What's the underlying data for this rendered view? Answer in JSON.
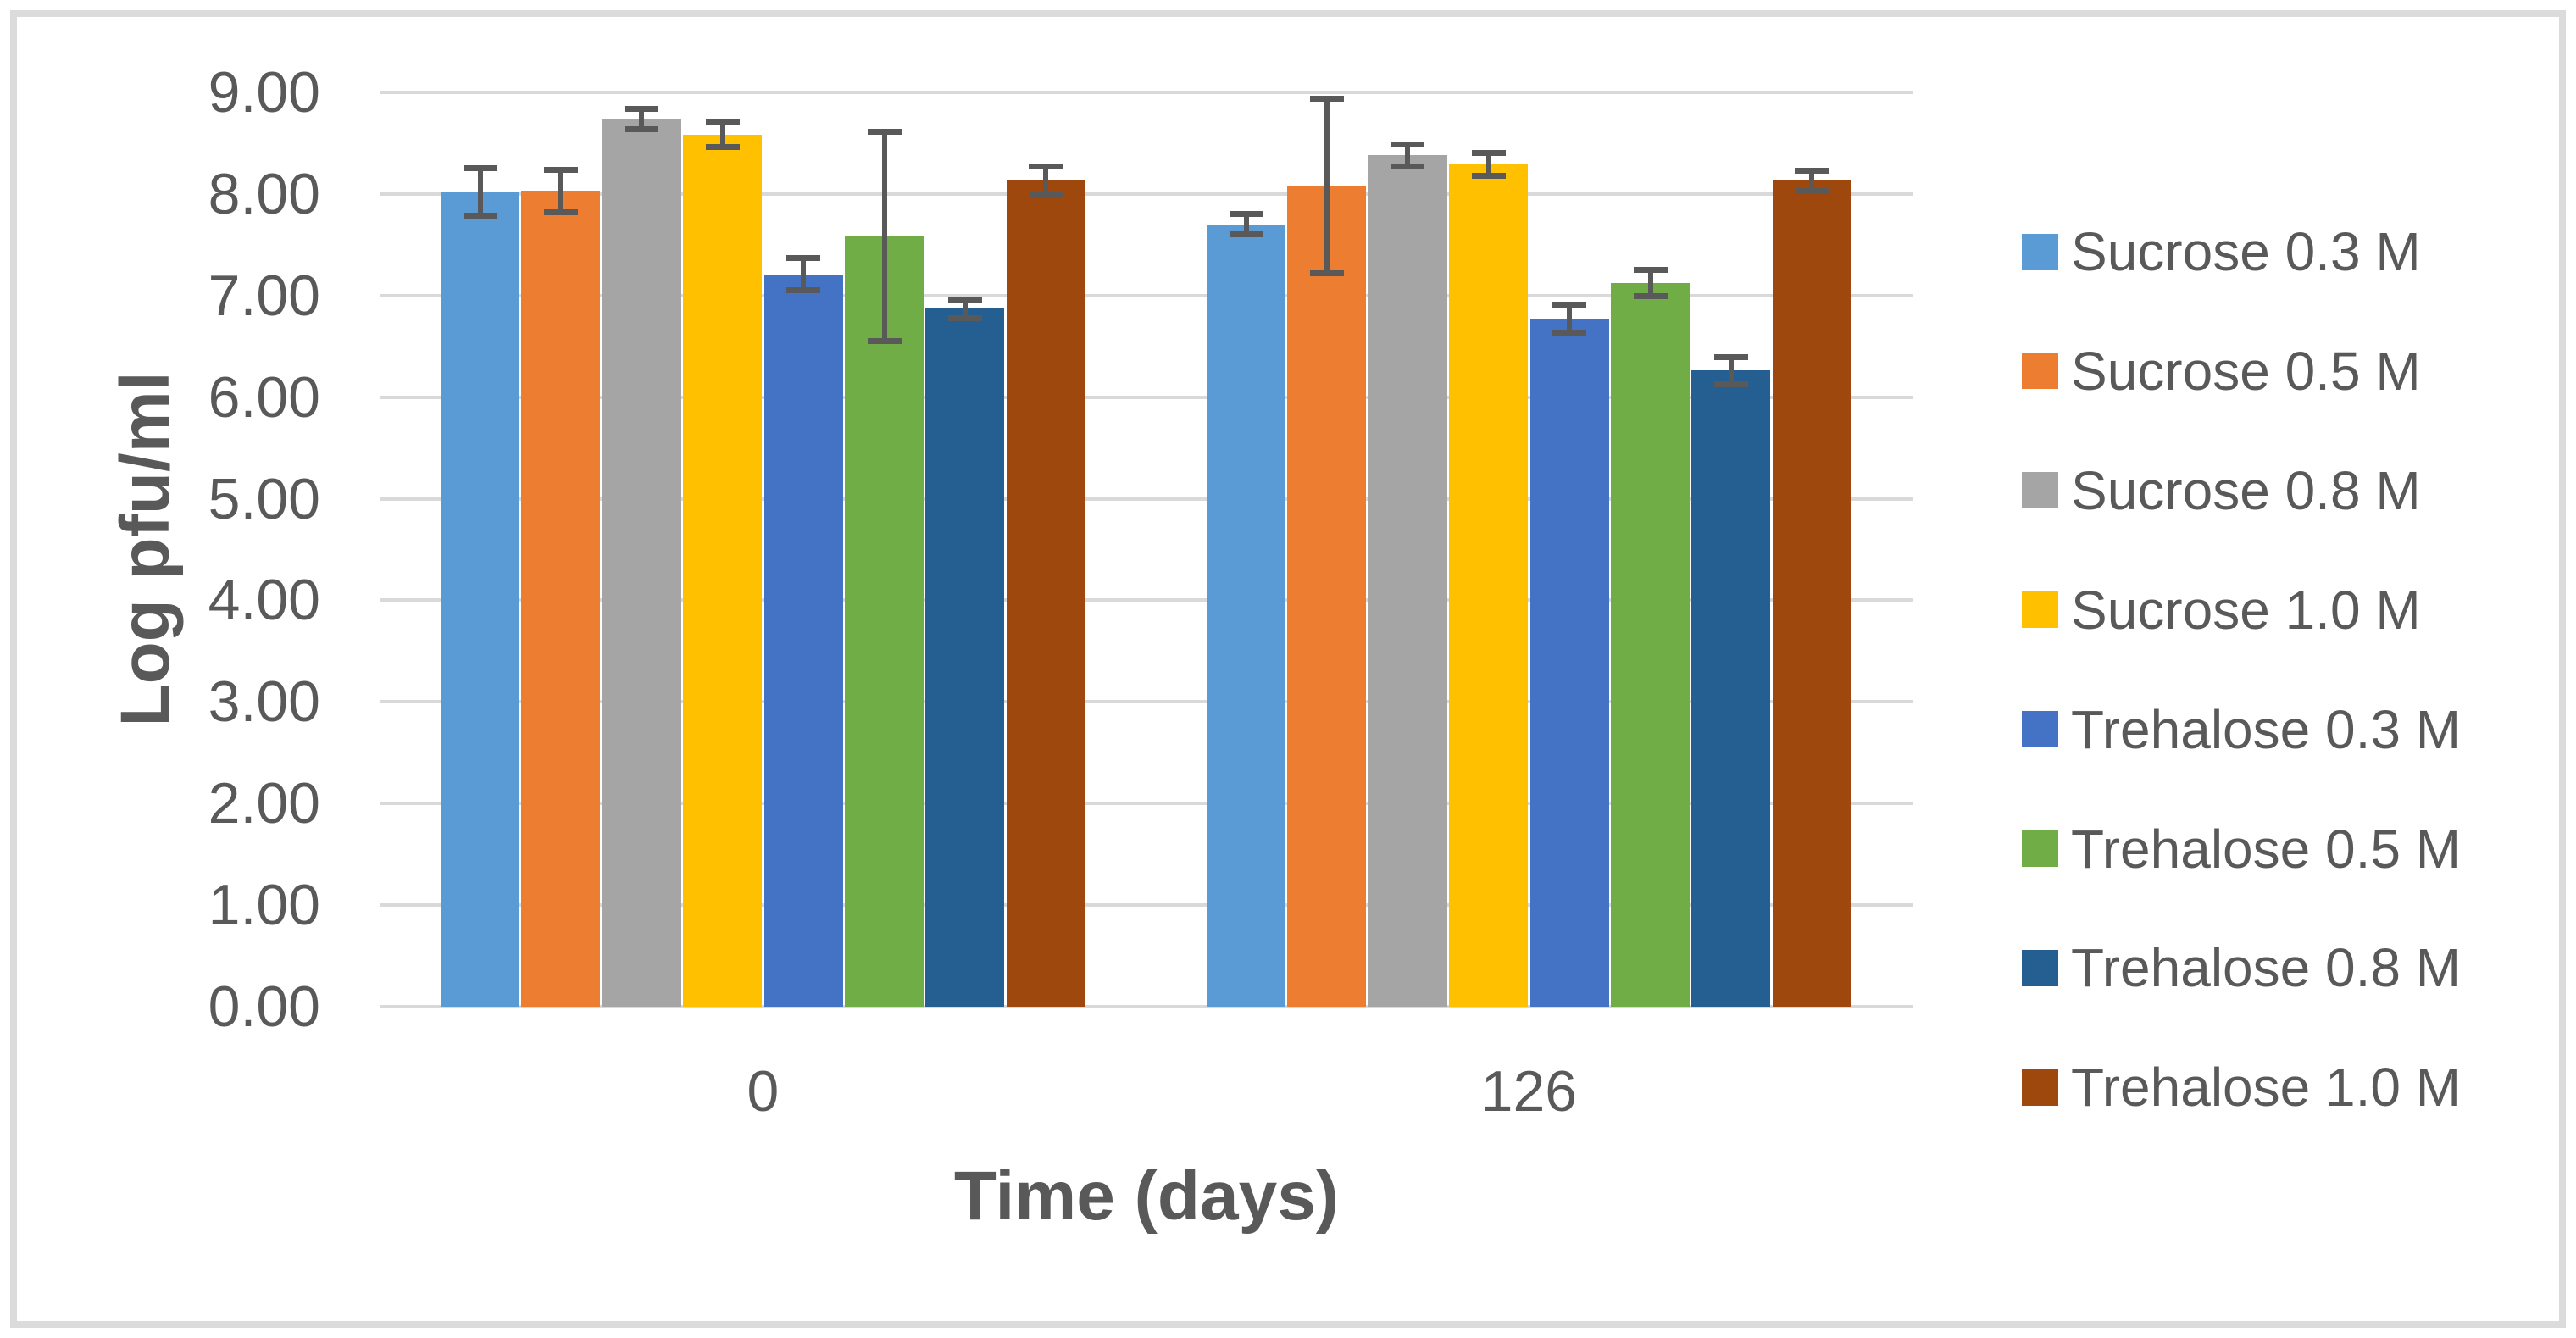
{
  "chart_data": {
    "type": "bar",
    "title": "",
    "xlabel": "Time (days)",
    "ylabel": "Log pfu/ml",
    "categories": [
      "0",
      "126"
    ],
    "series": [
      {
        "name": "Sucrose 0.3 M",
        "color": "#5B9BD5",
        "values": [
          8.02,
          7.7
        ],
        "errors": [
          0.23,
          0.1
        ]
      },
      {
        "name": "Sucrose 0.5 M",
        "color": "#ED7D31",
        "values": [
          8.03,
          8.08
        ],
        "errors": [
          0.21,
          0.86
        ]
      },
      {
        "name": "Sucrose 0.8 M",
        "color": "#A5A5A5",
        "values": [
          8.74,
          8.38
        ],
        "errors": [
          0.1,
          0.11
        ]
      },
      {
        "name": "Sucrose 1.0 M",
        "color": "#FFC000",
        "values": [
          8.58,
          8.29
        ],
        "errors": [
          0.12,
          0.11
        ]
      },
      {
        "name": "Trehalose 0.3 M",
        "color": "#4472C4",
        "values": [
          7.21,
          6.77
        ],
        "errors": [
          0.16,
          0.14
        ]
      },
      {
        "name": "Trehalose 0.5 M",
        "color": "#70AD47",
        "values": [
          7.58,
          7.12
        ],
        "errors": [
          1.03,
          0.13
        ]
      },
      {
        "name": "Trehalose 0.8 M",
        "color": "#255E91",
        "values": [
          6.87,
          6.26
        ],
        "errors": [
          0.09,
          0.13
        ]
      },
      {
        "name": "Trehalose 1.0 M",
        "color": "#9E480E",
        "values": [
          8.13,
          8.13
        ],
        "errors": [
          0.14,
          0.1
        ]
      }
    ],
    "ylim": [
      0,
      9
    ],
    "ytick_labels": [
      "0.00",
      "1.00",
      "2.00",
      "3.00",
      "4.00",
      "5.00",
      "6.00",
      "7.00",
      "8.00",
      "9.00"
    ],
    "grid": true,
    "error_bars": true,
    "legend_position": "right",
    "palette": {
      "gridline": "#D9D9D9",
      "axis_text": "#595959",
      "error_bar": "#595959",
      "frame_border": "#DBDBDB",
      "background": "#FFFFFF"
    }
  }
}
